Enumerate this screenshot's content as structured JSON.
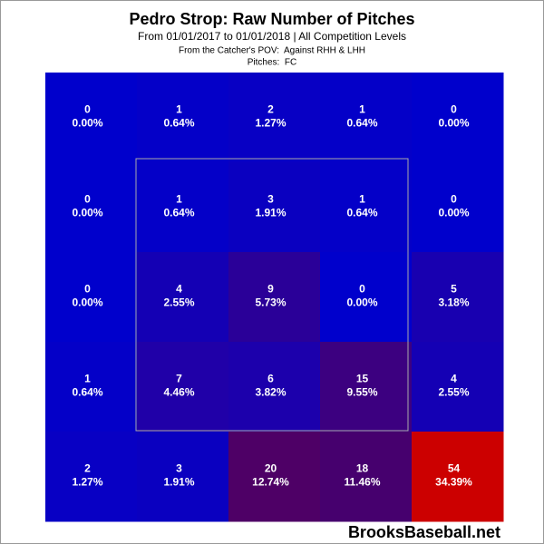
{
  "chart_data": {
    "type": "heatmap",
    "title": "Pedro Strop: Raw Number of Pitches",
    "subtitle": "From 01/01/2017 to 01/01/2018 | All Competition Levels",
    "perspective": "From the Catcher's POV:  Against RHH & LHH",
    "pitches": "Pitches:  FC",
    "source": "BrooksBaseball.net",
    "values": [
      [
        0,
        1,
        2,
        1,
        0
      ],
      [
        0,
        1,
        3,
        1,
        0
      ],
      [
        0,
        4,
        9,
        0,
        5
      ],
      [
        1,
        7,
        6,
        15,
        4
      ],
      [
        2,
        3,
        20,
        18,
        54
      ]
    ],
    "percents": [
      [
        0.0,
        0.64,
        1.27,
        0.64,
        0.0
      ],
      [
        0.0,
        0.64,
        1.91,
        0.64,
        0.0
      ],
      [
        0.0,
        2.55,
        5.73,
        0.0,
        3.18
      ],
      [
        0.64,
        4.46,
        3.82,
        9.55,
        2.55
      ],
      [
        1.27,
        1.91,
        12.74,
        11.46,
        34.39
      ]
    ],
    "percent_labels": [
      [
        "0.00%",
        "0.64%",
        "1.27%",
        "0.64%",
        "0.00%"
      ],
      [
        "0.00%",
        "0.64%",
        "1.91%",
        "0.64%",
        "0.00%"
      ],
      [
        "0.00%",
        "2.55%",
        "5.73%",
        "0.00%",
        "3.18%"
      ],
      [
        "0.64%",
        "4.46%",
        "3.82%",
        "9.55%",
        "2.55%"
      ],
      [
        "1.27%",
        "1.91%",
        "12.74%",
        "11.46%",
        "34.39%"
      ]
    ],
    "colors": [
      [
        "#0000cc",
        "#0400c8",
        "#0800c4",
        "#0400c8",
        "#0000cc"
      ],
      [
        "#0000cc",
        "#0400c8",
        "#0a00c0",
        "#0400c8",
        "#0000cc"
      ],
      [
        "#0000cc",
        "#1400b4",
        "#2a0098",
        "#0000cc",
        "#1800b0"
      ],
      [
        "#0400c8",
        "#2000a8",
        "#1c00ac",
        "#3c0080",
        "#1400b4"
      ],
      [
        "#0800c4",
        "#0a00c0",
        "#4e0066",
        "#46006e",
        "#cc0000"
      ]
    ]
  }
}
